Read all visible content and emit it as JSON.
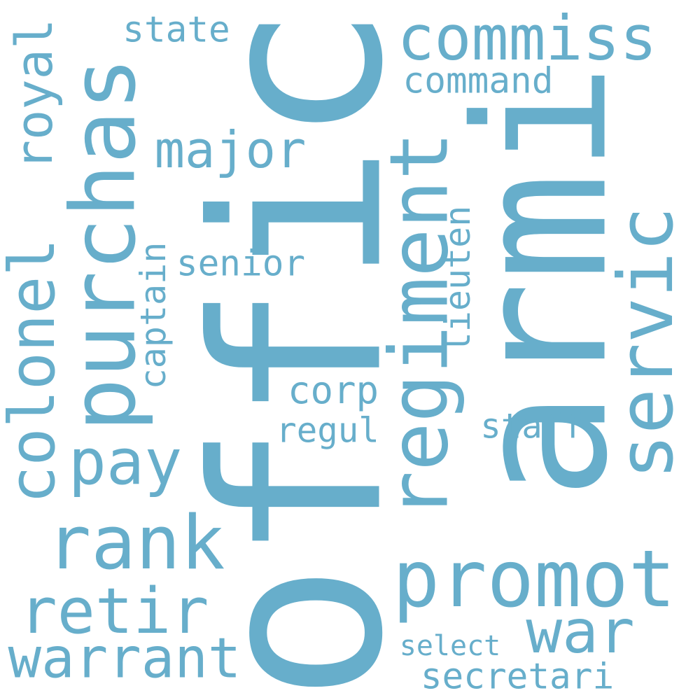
{
  "color": "#67aecb",
  "background": "#ffffff",
  "words": [
    "offic",
    "armi",
    "purchas",
    "regiment",
    "servic",
    "colonel",
    "promot",
    "rank",
    "commiss",
    "pay",
    "retir",
    "warrant",
    "war",
    "royal",
    "major",
    "captain",
    "lieuten",
    "senior",
    "corp",
    "state",
    "command",
    "staff",
    "regul",
    "secretari",
    "select"
  ]
}
